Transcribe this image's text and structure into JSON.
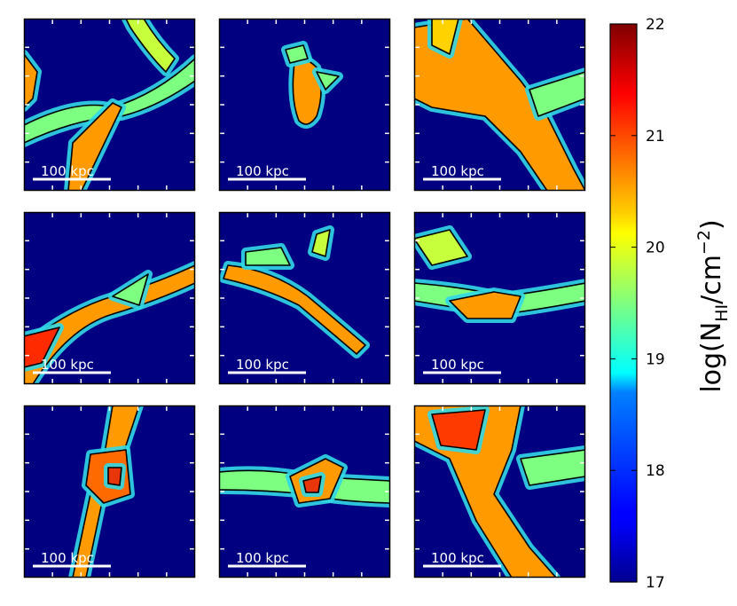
{
  "chart_data": {
    "type": "heatmap",
    "quantity_label": "log(N_HI/cm^-2)",
    "colorbar": {
      "min": 17,
      "max": 22,
      "ticks": [
        "17",
        "18",
        "19",
        "20",
        "21",
        "22"
      ],
      "label_main": "log(N",
      "label_sub": "HI",
      "label_mid": "/cm",
      "label_sup": "−2",
      "label_end": ")",
      "colormap": "jet"
    },
    "background_value": 17,
    "contour_levels": [
      {
        "value": 20.3,
        "color": "#000000"
      },
      {
        "value": 21.3,
        "color": "#ffffff"
      }
    ],
    "grid": {
      "rows": 3,
      "cols": 3
    },
    "panels": [
      {
        "scale_bar": "100 kpc"
      },
      {
        "scale_bar": "100 kpc"
      },
      {
        "scale_bar": "100 kpc"
      },
      {
        "scale_bar": "100 kpc"
      },
      {
        "scale_bar": "100 kpc"
      },
      {
        "scale_bar": "100 kpc"
      },
      {
        "scale_bar": "100 kpc"
      },
      {
        "scale_bar": "100 kpc"
      },
      {
        "scale_bar": "100 kpc"
      }
    ]
  }
}
